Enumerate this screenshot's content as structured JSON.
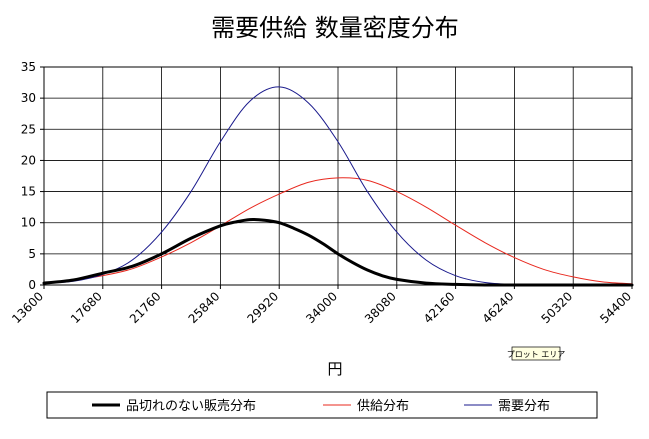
{
  "chart_data": {
    "type": "line",
    "title": "需要供給 数量密度分布",
    "xlabel": "円",
    "ylabel": "",
    "x_ticks": [
      13600,
      17680,
      21760,
      25840,
      29920,
      34000,
      38080,
      42160,
      46240,
      50320,
      54400
    ],
    "xlim": [
      13600,
      54400
    ],
    "ylim": [
      0,
      35
    ],
    "y_ticks": [
      0,
      5,
      10,
      15,
      20,
      25,
      30,
      35
    ],
    "grid": true,
    "legend_position": "bottom",
    "series": [
      {
        "name": "品切れのない販売分布",
        "color": "#000000",
        "x": [
          13600,
          15640,
          17680,
          19720,
          21760,
          23800,
          25840,
          26860,
          27880,
          28900,
          29920,
          30940,
          31960,
          32980,
          34000,
          35020,
          36040,
          37060,
          38080,
          40120,
          42160,
          44200,
          46240,
          48280,
          50320,
          52360,
          54400
        ],
        "values": [
          0.3,
          0.8,
          1.9,
          3.0,
          5.0,
          7.5,
          9.5,
          10.1,
          10.5,
          10.4,
          10.0,
          9.1,
          8.0,
          6.6,
          5.0,
          3.6,
          2.4,
          1.5,
          0.9,
          0.3,
          0.1,
          0.0,
          0.0,
          0.0,
          0.0,
          0.0,
          0.0
        ]
      },
      {
        "name": "供給分布",
        "color": "#e8281e",
        "x": [
          13600,
          15640,
          17680,
          19720,
          21760,
          23800,
          25840,
          27880,
          29920,
          31960,
          34000,
          36040,
          38080,
          40120,
          42160,
          44200,
          46240,
          48280,
          50320,
          52360,
          54400
        ],
        "values": [
          0.3,
          0.8,
          1.5,
          2.6,
          4.5,
          6.8,
          9.5,
          12.3,
          14.6,
          16.5,
          17.2,
          16.8,
          15.0,
          12.5,
          9.6,
          6.8,
          4.4,
          2.5,
          1.3,
          0.5,
          0.2
        ]
      },
      {
        "name": "需要分布",
        "color": "#1a1a8c",
        "x": [
          13600,
          15640,
          17680,
          19720,
          21760,
          23800,
          25840,
          27880,
          29920,
          31960,
          34000,
          36040,
          38080,
          40120,
          42160,
          44200,
          46240,
          48280,
          50320,
          52360,
          54400
        ],
        "values": [
          0.3,
          0.6,
          1.7,
          4.0,
          8.5,
          15.0,
          23.0,
          29.5,
          31.8,
          29.2,
          23.0,
          15.0,
          8.5,
          4.0,
          1.5,
          0.4,
          0.1,
          0.0,
          0.0,
          0.0,
          0.0
        ]
      }
    ]
  },
  "plot_area_tip": "プロット エリア"
}
